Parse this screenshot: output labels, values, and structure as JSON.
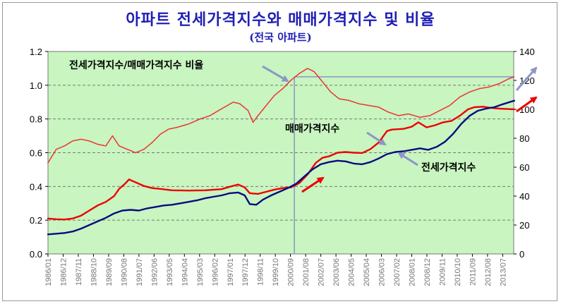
{
  "title": "아파트 전세가격지수와 매매가격지수 및 비율",
  "subtitle": "(전국 아파트)",
  "chart_data": {
    "type": "line",
    "x_range": [
      "1986/01",
      "2014/03"
    ],
    "x_tick_labels": [
      "1986/01",
      "1986/12",
      "1987/11",
      "1988/10",
      "1989/09",
      "1990/08",
      "1991/07",
      "1992/06",
      "1993/05",
      "1994/04",
      "1995/03",
      "1996/02",
      "1997/01",
      "1997/12",
      "1998/11",
      "1999/10",
      "2000/09",
      "2001/08",
      "2002/07",
      "2003/06",
      "2004/05",
      "2005/04",
      "2006/03",
      "2007/02",
      "2008/01",
      "2008/12",
      "2009/11",
      "2010/10",
      "2011/09",
      "2012/08",
      "2013/07"
    ],
    "y_left_range": [
      0,
      1.2
    ],
    "y_left_ticks": [
      "0.0",
      "0.2",
      "0.4",
      "0.6",
      "0.8",
      "1.0",
      "1.2"
    ],
    "y_right_range": [
      0,
      140
    ],
    "y_right_ticks": [
      "0",
      "20",
      "40",
      "60",
      "80",
      "100",
      "120",
      "140"
    ],
    "grid": true,
    "series": [
      {
        "name": "전세가격지수/매매가격지수 비율",
        "axis": "left",
        "color": "#ee3030",
        "style": "dotted",
        "points": [
          [
            1986.0,
            0.54
          ],
          [
            1986.5,
            0.62
          ],
          [
            1987.0,
            0.64
          ],
          [
            1987.5,
            0.67
          ],
          [
            1988.0,
            0.68
          ],
          [
            1988.5,
            0.67
          ],
          [
            1989.0,
            0.65
          ],
          [
            1989.5,
            0.64
          ],
          [
            1989.9,
            0.7
          ],
          [
            1990.3,
            0.64
          ],
          [
            1990.8,
            0.62
          ],
          [
            1991.3,
            0.6
          ],
          [
            1991.8,
            0.62
          ],
          [
            1992.3,
            0.66
          ],
          [
            1992.8,
            0.71
          ],
          [
            1993.3,
            0.74
          ],
          [
            1993.8,
            0.75
          ],
          [
            1994.5,
            0.77
          ],
          [
            1995.2,
            0.8
          ],
          [
            1995.8,
            0.82
          ],
          [
            1996.5,
            0.86
          ],
          [
            1997.2,
            0.9
          ],
          [
            1997.6,
            0.89
          ],
          [
            1998.1,
            0.85
          ],
          [
            1998.4,
            0.78
          ],
          [
            1998.7,
            0.82
          ],
          [
            1999.2,
            0.88
          ],
          [
            1999.7,
            0.94
          ],
          [
            2000.2,
            0.98
          ],
          [
            2000.7,
            1.03
          ],
          [
            2001.2,
            1.07
          ],
          [
            2001.7,
            1.1
          ],
          [
            2002.1,
            1.08
          ],
          [
            2002.6,
            1.02
          ],
          [
            2003.1,
            0.96
          ],
          [
            2003.6,
            0.92
          ],
          [
            2004.2,
            0.91
          ],
          [
            2004.8,
            0.89
          ],
          [
            2005.4,
            0.88
          ],
          [
            2006.0,
            0.87
          ],
          [
            2006.6,
            0.84
          ],
          [
            2007.2,
            0.82
          ],
          [
            2007.8,
            0.83
          ],
          [
            2008.5,
            0.81
          ],
          [
            2009.1,
            0.82
          ],
          [
            2009.7,
            0.85
          ],
          [
            2010.3,
            0.88
          ],
          [
            2010.9,
            0.93
          ],
          [
            2011.5,
            0.96
          ],
          [
            2012.1,
            0.98
          ],
          [
            2012.7,
            0.99
          ],
          [
            2013.3,
            1.01
          ],
          [
            2013.9,
            1.04
          ],
          [
            2014.2,
            1.05
          ]
        ]
      },
      {
        "name": "매매가격지수",
        "axis": "right",
        "color": "#ee0000",
        "style": "solid",
        "points": [
          [
            1986.0,
            24.5
          ],
          [
            1986.5,
            24.0
          ],
          [
            1987.0,
            23.8
          ],
          [
            1987.5,
            24.5
          ],
          [
            1988.0,
            26.5
          ],
          [
            1988.5,
            30.0
          ],
          [
            1989.0,
            33.5
          ],
          [
            1989.5,
            36.0
          ],
          [
            1990.0,
            40.0
          ],
          [
            1990.3,
            45.0
          ],
          [
            1990.7,
            49.0
          ],
          [
            1990.9,
            51.5
          ],
          [
            1991.3,
            49.5
          ],
          [
            1991.8,
            47.0
          ],
          [
            1992.3,
            45.5
          ],
          [
            1992.8,
            45.0
          ],
          [
            1993.5,
            44.0
          ],
          [
            1994.5,
            43.8
          ],
          [
            1995.5,
            44.0
          ],
          [
            1996.5,
            44.8
          ],
          [
            1997.0,
            46.5
          ],
          [
            1997.5,
            48.0
          ],
          [
            1997.9,
            46.0
          ],
          [
            1998.2,
            42.0
          ],
          [
            1998.7,
            41.5
          ],
          [
            1999.2,
            43.0
          ],
          [
            1999.7,
            44.5
          ],
          [
            2000.2,
            45.5
          ],
          [
            2000.7,
            46.0
          ],
          [
            2001.2,
            49.0
          ],
          [
            2001.7,
            55.0
          ],
          [
            2002.2,
            63.0
          ],
          [
            2002.6,
            66.5
          ],
          [
            2003.0,
            67.5
          ],
          [
            2003.5,
            70.0
          ],
          [
            2004.0,
            70.5
          ],
          [
            2004.5,
            70.0
          ],
          [
            2005.0,
            69.8
          ],
          [
            2005.5,
            72.5
          ],
          [
            2006.0,
            77.0
          ],
          [
            2006.5,
            85.0
          ],
          [
            2006.8,
            86.0
          ],
          [
            2007.5,
            86.5
          ],
          [
            2008.0,
            88.0
          ],
          [
            2008.4,
            91.0
          ],
          [
            2008.9,
            87.5
          ],
          [
            2009.4,
            89.0
          ],
          [
            2009.9,
            91.0
          ],
          [
            2010.4,
            92.0
          ],
          [
            2010.9,
            95.5
          ],
          [
            2011.4,
            100.0
          ],
          [
            2011.8,
            101.5
          ],
          [
            2012.3,
            101.8
          ],
          [
            2012.8,
            101.0
          ],
          [
            2013.3,
            100.5
          ],
          [
            2013.8,
            100.2
          ],
          [
            2014.2,
            100.0
          ]
        ]
      },
      {
        "name": "전세가격지수",
        "axis": "right",
        "color": "#0a0a80",
        "style": "solid",
        "points": [
          [
            1986.0,
            13.5
          ],
          [
            1986.5,
            14.0
          ],
          [
            1987.0,
            14.5
          ],
          [
            1987.5,
            15.5
          ],
          [
            1988.0,
            17.5
          ],
          [
            1988.5,
            20.0
          ],
          [
            1989.0,
            22.5
          ],
          [
            1989.5,
            25.0
          ],
          [
            1990.0,
            28.0
          ],
          [
            1990.5,
            30.0
          ],
          [
            1991.0,
            30.5
          ],
          [
            1991.5,
            30.0
          ],
          [
            1992.0,
            31.5
          ],
          [
            1992.5,
            32.5
          ],
          [
            1993.0,
            33.5
          ],
          [
            1993.5,
            34.0
          ],
          [
            1994.0,
            35.0
          ],
          [
            1994.5,
            36.0
          ],
          [
            1995.0,
            37.0
          ],
          [
            1995.5,
            38.5
          ],
          [
            1996.0,
            39.5
          ],
          [
            1996.5,
            40.5
          ],
          [
            1997.0,
            42.0
          ],
          [
            1997.5,
            42.5
          ],
          [
            1997.9,
            40.5
          ],
          [
            1998.2,
            34.5
          ],
          [
            1998.6,
            34.0
          ],
          [
            1999.0,
            37.5
          ],
          [
            1999.5,
            40.5
          ],
          [
            2000.0,
            43.0
          ],
          [
            2000.5,
            45.5
          ],
          [
            2001.0,
            48.5
          ],
          [
            2001.5,
            53.5
          ],
          [
            2002.0,
            58.5
          ],
          [
            2002.5,
            62.0
          ],
          [
            2003.0,
            63.5
          ],
          [
            2003.5,
            64.5
          ],
          [
            2004.0,
            64.0
          ],
          [
            2004.5,
            62.5
          ],
          [
            2005.0,
            62.0
          ],
          [
            2005.5,
            63.5
          ],
          [
            2006.0,
            66.0
          ],
          [
            2006.5,
            69.0
          ],
          [
            2007.0,
            70.5
          ],
          [
            2007.5,
            71.0
          ],
          [
            2008.0,
            72.0
          ],
          [
            2008.5,
            73.0
          ],
          [
            2009.0,
            72.0
          ],
          [
            2009.5,
            74.0
          ],
          [
            2010.0,
            77.5
          ],
          [
            2010.5,
            83.0
          ],
          [
            2011.0,
            90.0
          ],
          [
            2011.5,
            95.5
          ],
          [
            2012.0,
            99.0
          ],
          [
            2012.5,
            100.5
          ],
          [
            2013.0,
            101.5
          ],
          [
            2013.5,
            103.5
          ],
          [
            2014.2,
            106.0
          ]
        ]
      }
    ],
    "annotations": [
      "전세가격지수/매매가격지수 비율",
      "매매가격지수",
      "전세가격지수"
    ],
    "reference_lines": {
      "vertical_x": 2000.9,
      "horizontal_y_left": 1.05
    }
  }
}
